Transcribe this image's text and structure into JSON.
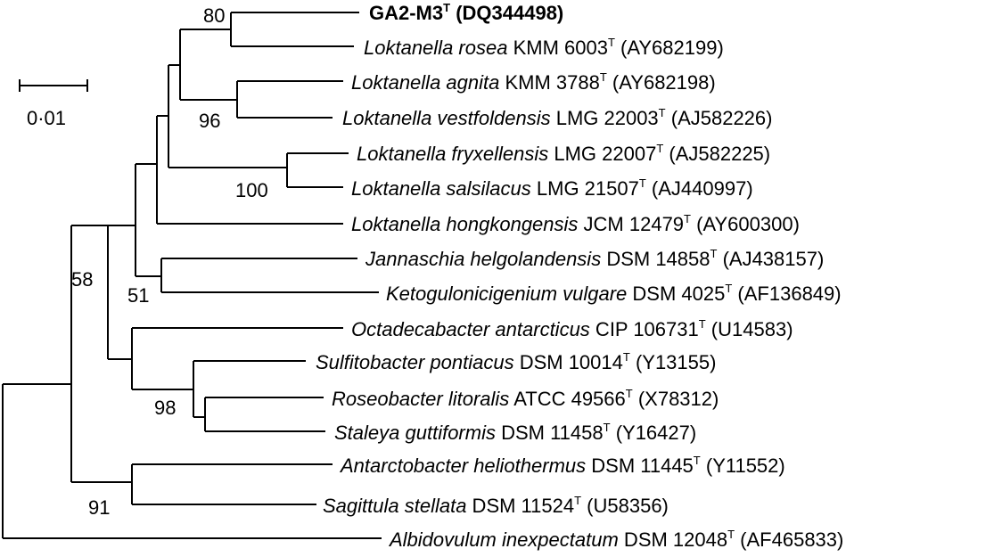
{
  "scale_bar": {
    "label": "0·01"
  },
  "bootstrap": {
    "b80": "80",
    "b96": "96",
    "b100": "100",
    "b58": "58",
    "b51": "51",
    "b98": "98",
    "b91": "91"
  },
  "taxa": [
    {
      "genus_species": "",
      "strain": "GA2-M3",
      "sup": "T",
      "accession": " (DQ344498)"
    },
    {
      "genus_species": "Loktanella rosea",
      "strain": " KMM 6003",
      "sup": "T",
      "accession": " (AY682199)"
    },
    {
      "genus_species": "Loktanella agnita",
      "strain": " KMM 3788",
      "sup": "T",
      "accession": " (AY682198)"
    },
    {
      "genus_species": "Loktanella vestfoldensis",
      "strain": " LMG 22003",
      "sup": "T",
      "accession": " (AJ582226)"
    },
    {
      "genus_species": "Loktanella fryxellensis",
      "strain": " LMG 22007",
      "sup": "T",
      "accession": " (AJ582225)"
    },
    {
      "genus_species": "Loktanella salsilacus",
      "strain": " LMG 21507",
      "sup": "T",
      "accession": " (AJ440997)"
    },
    {
      "genus_species": "Loktanella hongkongensis",
      "strain": " JCM 12479",
      "sup": "T",
      "accession": " (AY600300)"
    },
    {
      "genus_species": "Jannaschia helgolandensis",
      "strain": " DSM 14858",
      "sup": "T",
      "accession": " (AJ438157)"
    },
    {
      "genus_species": "Ketogulonicigenium vulgare",
      "strain": " DSM 4025",
      "sup": "T",
      "accession": " (AF136849)"
    },
    {
      "genus_species": "Octadecabacter antarcticus",
      "strain": " CIP 106731",
      "sup": "T",
      "accession": " (U14583)"
    },
    {
      "genus_species": "Sulfitobacter pontiacus",
      "strain": " DSM 10014",
      "sup": "T",
      "accession": " (Y13155)"
    },
    {
      "genus_species": "Roseobacter litoralis",
      "strain": " ATCC 49566",
      "sup": "T",
      "accession": " (X78312)"
    },
    {
      "genus_species": "Staleya guttiformis",
      "strain": " DSM 11458",
      "sup": "T",
      "accession": " (Y16427)"
    },
    {
      "genus_species": "Antarctobacter heliothermus",
      "strain": " DSM 11445",
      "sup": "T",
      "accession": " (Y11552)"
    },
    {
      "genus_species": "Sagittula stellata",
      "strain": " DSM 11524",
      "sup": "T",
      "accession": " (U58356)"
    },
    {
      "genus_species": "Albidovulum inexpectatum",
      "strain": " DSM 12048",
      "sup": "T",
      "accession": " (AF465833)"
    }
  ]
}
